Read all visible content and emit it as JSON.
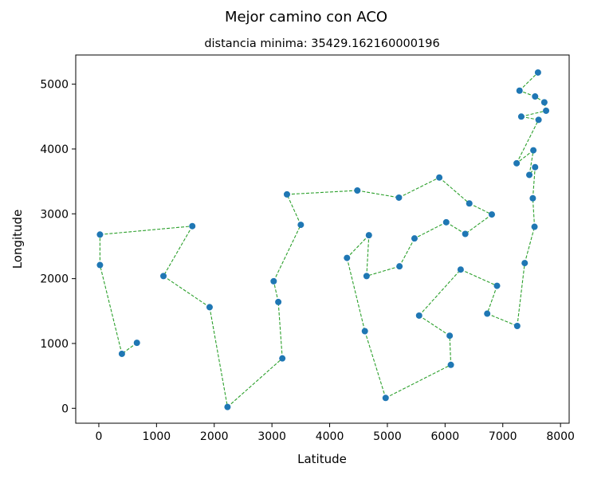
{
  "chart_data": {
    "type": "scatter",
    "suptitle": "Mejor camino con ACO",
    "title": "distancia minima: 35429.162160000196",
    "xlabel": "Latitude",
    "ylabel": "Longitude",
    "xlim": [
      -400,
      8150
    ],
    "ylim": [
      -230,
      5450
    ],
    "xticks": [
      0,
      1000,
      2000,
      3000,
      4000,
      5000,
      6000,
      7000,
      8000
    ],
    "yticks": [
      0,
      1000,
      2000,
      3000,
      4000,
      5000
    ],
    "grid": false,
    "point_color": "#1f77b4",
    "line_color": "#2ca02c",
    "line_style": "dashed",
    "series": [
      {
        "x": [
          660,
          400,
          20,
          20,
          1620,
          1120,
          1920,
          2230,
          3180,
          3110,
          3030,
          3500,
          3260,
          4480,
          5200,
          5900,
          6420,
          6810,
          6350,
          6020,
          5470,
          5210,
          4640,
          4680,
          4300,
          4610,
          4970,
          6100,
          6080,
          5550,
          6270,
          6900,
          6730,
          7250,
          7380,
          7550,
          7520,
          7560,
          7460,
          7530,
          7240,
          7620,
          7320,
          7750,
          7720,
          7560,
          7290,
          7610
        ],
        "y": [
          1010,
          840,
          2210,
          2680,
          2810,
          2040,
          1560,
          20,
          770,
          1640,
          1960,
          2830,
          3300,
          3360,
          3250,
          3560,
          3160,
          2990,
          2690,
          2870,
          2620,
          2190,
          2040,
          2670,
          2320,
          1190,
          160,
          670,
          1120,
          1430,
          2140,
          1890,
          1460,
          1270,
          2240,
          2800,
          3240,
          3720,
          3600,
          3980,
          3780,
          4450,
          4500,
          4590,
          4720,
          4810,
          4900,
          5180
        ]
      }
    ]
  }
}
